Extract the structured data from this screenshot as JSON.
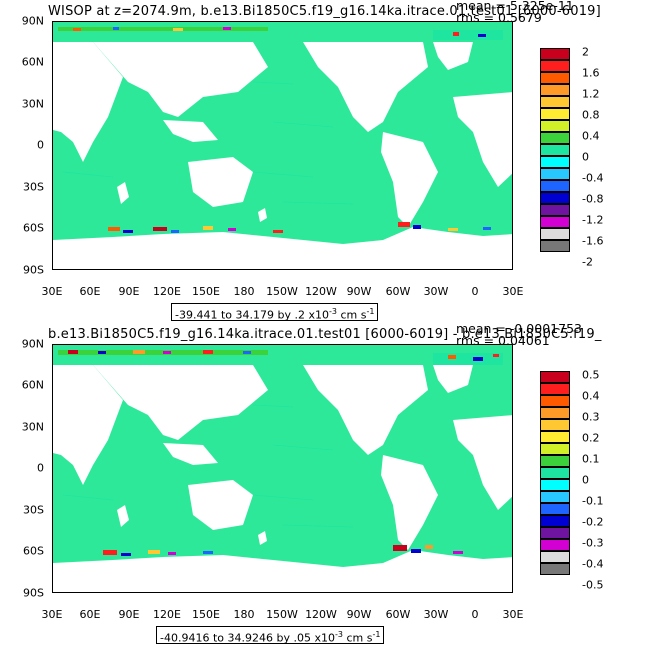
{
  "colors": {
    "ocean": "#2ee89a",
    "land": "#ffffff",
    "frame": "#000000",
    "legend": [
      "#c8001e",
      "#ff1e1e",
      "#ff5a00",
      "#ff9a28",
      "#ffc832",
      "#ffec32",
      "#d2f028",
      "#3cd23c",
      "#1ee6a0",
      "#00ffff",
      "#28c8ff",
      "#1e64ff",
      "#0000d2",
      "#6e14a0",
      "#d200d2",
      "#dcdcdc",
      "#787878"
    ]
  },
  "panels": [
    {
      "title": "WISOP at z=2074.9m, b.e13.Bi1850C5.f19_g16.14ka.itrace.01.test01 [6000-6019]",
      "mean": "mean = 5.325e-11",
      "rms": "rms = 0.5679",
      "range_text": "-39.441 to 34.179 by .2 x10",
      "units_tail": " cm s",
      "exp1": "-3",
      "exp2": "-1",
      "legend_labels": [
        "2",
        "1.6",
        "1.2",
        "0.8",
        "0.4",
        "0",
        "-0.4",
        "-0.8",
        "-1.2",
        "-1.6",
        "-2"
      ]
    },
    {
      "title": "b.e13.Bi1850C5.f19_g16.14ka.itrace.01.test01 [6000-6019] - b.e13.Bi1850C5.f19_",
      "mean": "mean = -0.0001753",
      "rms": "rms = 0.04061",
      "range_text": "-40.9416 to 34.9246 by .05 x10",
      "units_tail": " cm s",
      "exp1": "-3",
      "exp2": "-1",
      "legend_labels": [
        "0.5",
        "0.4",
        "0.3",
        "0.2",
        "0.1",
        "0",
        "-0.1",
        "-0.2",
        "-0.3",
        "-0.4",
        "-0.5"
      ]
    }
  ],
  "axes": {
    "y_labels": [
      "90N",
      "60N",
      "30N",
      "0",
      "30S",
      "60S",
      "90S"
    ],
    "x_labels": [
      "30E",
      "60E",
      "90E",
      "120E",
      "150E",
      "180",
      "150W",
      "120W",
      "90W",
      "60W",
      "30W",
      "0",
      "30E"
    ]
  }
}
